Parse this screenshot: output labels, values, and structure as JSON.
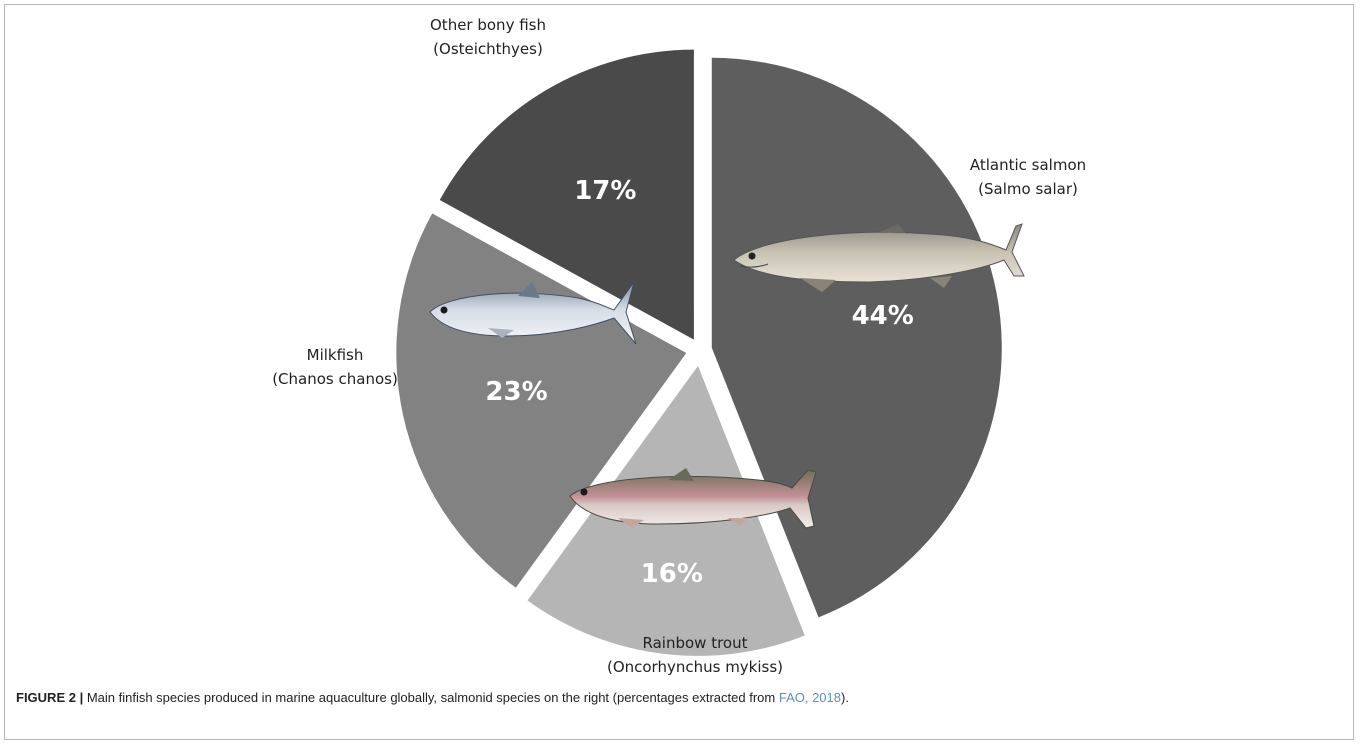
{
  "chart_data": {
    "type": "pie",
    "slices": [
      {
        "label": "Atlantic salmon",
        "sublabel": "(Salmo salar)",
        "value": 44,
        "pct_text": "44%",
        "color": "#5e5e5e",
        "icon": "atlantic-salmon-fish-icon"
      },
      {
        "label": "Rainbow trout",
        "sublabel": "(Oncorhynchus mykiss)",
        "value": 16,
        "pct_text": "16%",
        "color": "#b5b5b5",
        "icon": "rainbow-trout-fish-icon"
      },
      {
        "label": "Milkfish",
        "sublabel": "(Chanos chanos)",
        "value": 23,
        "pct_text": "23%",
        "color": "#828282",
        "icon": "milkfish-fish-icon"
      },
      {
        "label": "Other bony fish",
        "sublabel": "(Osteichthyes)",
        "value": 17,
        "pct_text": "17%",
        "color": "#4a4a4a"
      }
    ],
    "start_angle_deg": 0,
    "direction": "clockwise",
    "exploded": true
  },
  "caption": {
    "label": "FIGURE 2 |",
    "text_before": " Main finfish species produced in marine aquaculture globally, salmonid species on the right (percentages extracted from ",
    "citation": "FAO, 2018",
    "text_after": ")."
  }
}
